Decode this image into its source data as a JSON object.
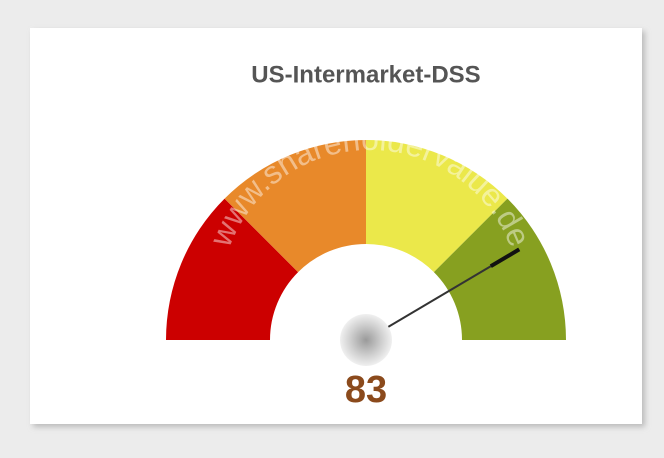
{
  "chart_data": {
    "type": "gauge",
    "title": "US-Intermarket-DSS",
    "value": 83,
    "ylim": [
      0,
      100
    ],
    "bands": [
      {
        "from": 0,
        "to": 25,
        "color": "#cc0000"
      },
      {
        "from": 25,
        "to": 50,
        "color": "#e8892a"
      },
      {
        "from": 50,
        "to": 75,
        "color": "#ebe84a"
      },
      {
        "from": 75,
        "to": 100,
        "color": "#87a020"
      }
    ],
    "needle_color": "#333333",
    "value_color": "#8b4a1c",
    "watermark": "www.shareholdervalue.de"
  }
}
